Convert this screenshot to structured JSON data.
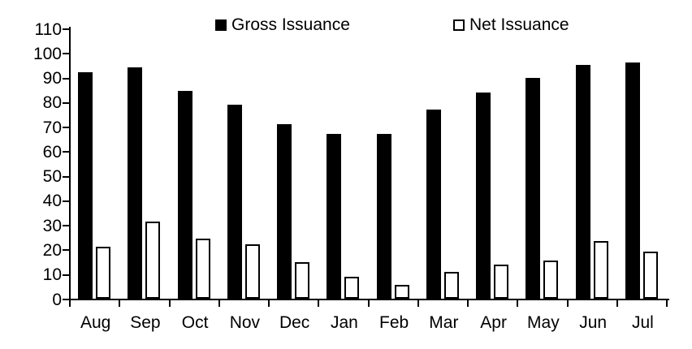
{
  "chart_data": {
    "type": "bar",
    "title": "",
    "xlabel": "",
    "ylabel": "",
    "categories": [
      "Aug",
      "Sep",
      "Oct",
      "Nov",
      "Dec",
      "Jan",
      "Feb",
      "Mar",
      "Apr",
      "May",
      "Jun",
      "Jul"
    ],
    "series": [
      {
        "name": "Gross Issuance",
        "style": "solid",
        "fill_color": "#000000",
        "values": [
          92,
          94,
          84.5,
          79,
          71,
          67,
          67,
          77,
          84,
          90,
          95,
          96
        ]
      },
      {
        "name": "Net Issuance",
        "style": "outline",
        "fill_color": "#ffffff",
        "border_color": "#000000",
        "values": [
          21,
          31.5,
          24.5,
          22,
          15,
          9,
          5.5,
          11,
          14,
          15.5,
          23.5,
          19
        ]
      }
    ],
    "ylim": [
      0,
      110
    ],
    "yticks": [
      0,
      10,
      20,
      30,
      40,
      50,
      60,
      70,
      80,
      90,
      100,
      110
    ],
    "grid": false,
    "legend_position": "top-center",
    "axis_color": "#000000",
    "background_color": "#ffffff"
  }
}
